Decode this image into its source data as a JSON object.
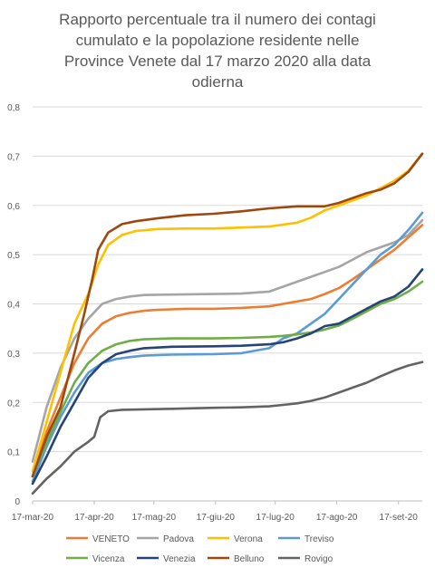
{
  "chart_data": {
    "type": "line",
    "title": "Rapporto percentuale tra il numero dei contagi cumulato e la popolazione residente nelle Province Venete dal 17 marzo 2020 alla data odierna",
    "title_lines": [
      "Rapporto percentuale tra il numero dei contagi",
      "cumulato e la popolazione residente nelle",
      "Province Venete dal 17 marzo 2020 alla data",
      "odierna"
    ],
    "x_tick_labels": [
      "17-mar-20",
      "17-apr-20",
      "17-mag-20",
      "17-giu-20",
      "17-lug-20",
      "17-ago-20",
      "17-set-20"
    ],
    "x_tick_days": [
      0,
      31,
      61,
      92,
      122,
      153,
      184
    ],
    "xlim_days": [
      0,
      196
    ],
    "ylim": [
      0,
      0.8
    ],
    "y_tick_values": [
      0,
      0.1,
      0.2,
      0.3,
      0.4,
      0.5,
      0.6,
      0.7,
      0.8
    ],
    "y_tick_labels": [
      "0",
      "0,1",
      "0,2",
      "0,3",
      "0,4",
      "0,5",
      "0,6",
      "0,7",
      "0,8"
    ],
    "grid": "horizontal",
    "legend_position": "bottom",
    "series": [
      {
        "name": "VENETO",
        "color": "#ed7d31",
        "points": [
          [
            0,
            0.05
          ],
          [
            7,
            0.14
          ],
          [
            14,
            0.21
          ],
          [
            21,
            0.28
          ],
          [
            28,
            0.33
          ],
          [
            35,
            0.36
          ],
          [
            42,
            0.375
          ],
          [
            49,
            0.382
          ],
          [
            56,
            0.386
          ],
          [
            63,
            0.388
          ],
          [
            77,
            0.39
          ],
          [
            91,
            0.39
          ],
          [
            105,
            0.392
          ],
          [
            119,
            0.395
          ],
          [
            126,
            0.4
          ],
          [
            133,
            0.405
          ],
          [
            140,
            0.41
          ],
          [
            147,
            0.42
          ],
          [
            154,
            0.432
          ],
          [
            161,
            0.45
          ],
          [
            168,
            0.47
          ],
          [
            175,
            0.49
          ],
          [
            182,
            0.51
          ],
          [
            189,
            0.535
          ],
          [
            196,
            0.56
          ]
        ]
      },
      {
        "name": "Padova",
        "color": "#a5a5a5",
        "points": [
          [
            0,
            0.08
          ],
          [
            7,
            0.19
          ],
          [
            14,
            0.27
          ],
          [
            21,
            0.33
          ],
          [
            28,
            0.37
          ],
          [
            35,
            0.4
          ],
          [
            42,
            0.41
          ],
          [
            49,
            0.415
          ],
          [
            56,
            0.418
          ],
          [
            70,
            0.419
          ],
          [
            91,
            0.42
          ],
          [
            105,
            0.421
          ],
          [
            119,
            0.425
          ],
          [
            126,
            0.435
          ],
          [
            133,
            0.445
          ],
          [
            140,
            0.455
          ],
          [
            147,
            0.465
          ],
          [
            154,
            0.475
          ],
          [
            161,
            0.49
          ],
          [
            168,
            0.505
          ],
          [
            175,
            0.515
          ],
          [
            182,
            0.525
          ],
          [
            189,
            0.54
          ],
          [
            196,
            0.57
          ]
        ]
      },
      {
        "name": "Verona",
        "color": "#ffc000",
        "points": [
          [
            0,
            0.06
          ],
          [
            7,
            0.16
          ],
          [
            14,
            0.26
          ],
          [
            21,
            0.36
          ],
          [
            28,
            0.42
          ],
          [
            33,
            0.48
          ],
          [
            38,
            0.52
          ],
          [
            45,
            0.54
          ],
          [
            52,
            0.548
          ],
          [
            63,
            0.552
          ],
          [
            77,
            0.553
          ],
          [
            91,
            0.553
          ],
          [
            105,
            0.555
          ],
          [
            119,
            0.557
          ],
          [
            133,
            0.565
          ],
          [
            140,
            0.575
          ],
          [
            147,
            0.59
          ],
          [
            154,
            0.6
          ],
          [
            161,
            0.61
          ],
          [
            168,
            0.62
          ],
          [
            175,
            0.635
          ],
          [
            182,
            0.65
          ],
          [
            189,
            0.67
          ],
          [
            196,
            0.705
          ]
        ]
      },
      {
        "name": "Treviso",
        "color": "#5b9bd5",
        "points": [
          [
            0,
            0.04
          ],
          [
            7,
            0.11
          ],
          [
            14,
            0.17
          ],
          [
            21,
            0.22
          ],
          [
            28,
            0.26
          ],
          [
            35,
            0.28
          ],
          [
            42,
            0.288
          ],
          [
            49,
            0.292
          ],
          [
            56,
            0.295
          ],
          [
            70,
            0.297
          ],
          [
            91,
            0.298
          ],
          [
            105,
            0.3
          ],
          [
            119,
            0.31
          ],
          [
            126,
            0.33
          ],
          [
            133,
            0.34
          ],
          [
            140,
            0.36
          ],
          [
            147,
            0.38
          ],
          [
            154,
            0.41
          ],
          [
            161,
            0.44
          ],
          [
            168,
            0.47
          ],
          [
            175,
            0.5
          ],
          [
            182,
            0.52
          ],
          [
            189,
            0.55
          ],
          [
            196,
            0.585
          ]
        ]
      },
      {
        "name": "Vicenza",
        "color": "#70ad47",
        "points": [
          [
            0,
            0.05
          ],
          [
            7,
            0.12
          ],
          [
            14,
            0.18
          ],
          [
            21,
            0.24
          ],
          [
            28,
            0.28
          ],
          [
            35,
            0.305
          ],
          [
            42,
            0.318
          ],
          [
            49,
            0.325
          ],
          [
            56,
            0.328
          ],
          [
            70,
            0.33
          ],
          [
            91,
            0.33
          ],
          [
            105,
            0.331
          ],
          [
            119,
            0.333
          ],
          [
            126,
            0.335
          ],
          [
            133,
            0.338
          ],
          [
            140,
            0.342
          ],
          [
            147,
            0.348
          ],
          [
            154,
            0.356
          ],
          [
            161,
            0.37
          ],
          [
            168,
            0.385
          ],
          [
            175,
            0.4
          ],
          [
            182,
            0.41
          ],
          [
            189,
            0.425
          ],
          [
            196,
            0.445
          ]
        ]
      },
      {
        "name": "Venezia",
        "color": "#264478",
        "points": [
          [
            0,
            0.035
          ],
          [
            7,
            0.09
          ],
          [
            14,
            0.15
          ],
          [
            21,
            0.2
          ],
          [
            28,
            0.25
          ],
          [
            35,
            0.28
          ],
          [
            42,
            0.298
          ],
          [
            49,
            0.305
          ],
          [
            56,
            0.31
          ],
          [
            70,
            0.313
          ],
          [
            91,
            0.314
          ],
          [
            105,
            0.315
          ],
          [
            119,
            0.318
          ],
          [
            126,
            0.322
          ],
          [
            133,
            0.33
          ],
          [
            140,
            0.34
          ],
          [
            147,
            0.355
          ],
          [
            154,
            0.36
          ],
          [
            161,
            0.375
          ],
          [
            168,
            0.39
          ],
          [
            175,
            0.405
          ],
          [
            182,
            0.415
          ],
          [
            189,
            0.435
          ],
          [
            196,
            0.47
          ]
        ]
      },
      {
        "name": "Belluno",
        "color": "#9e480e",
        "points": [
          [
            0,
            0.05
          ],
          [
            7,
            0.13
          ],
          [
            14,
            0.19
          ],
          [
            21,
            0.3
          ],
          [
            26,
            0.38
          ],
          [
            30,
            0.45
          ],
          [
            33,
            0.51
          ],
          [
            38,
            0.545
          ],
          [
            45,
            0.562
          ],
          [
            52,
            0.568
          ],
          [
            63,
            0.574
          ],
          [
            77,
            0.58
          ],
          [
            91,
            0.583
          ],
          [
            105,
            0.588
          ],
          [
            119,
            0.594
          ],
          [
            133,
            0.598
          ],
          [
            140,
            0.598
          ],
          [
            147,
            0.598
          ],
          [
            154,
            0.605
          ],
          [
            161,
            0.615
          ],
          [
            168,
            0.625
          ],
          [
            175,
            0.632
          ],
          [
            182,
            0.645
          ],
          [
            189,
            0.668
          ],
          [
            196,
            0.705
          ]
        ]
      },
      {
        "name": "Rovigo",
        "color": "#636363",
        "points": [
          [
            0,
            0.015
          ],
          [
            7,
            0.045
          ],
          [
            14,
            0.07
          ],
          [
            21,
            0.1
          ],
          [
            28,
            0.12
          ],
          [
            31,
            0.13
          ],
          [
            34,
            0.17
          ],
          [
            38,
            0.182
          ],
          [
            45,
            0.185
          ],
          [
            56,
            0.186
          ],
          [
            70,
            0.187
          ],
          [
            91,
            0.189
          ],
          [
            105,
            0.19
          ],
          [
            119,
            0.192
          ],
          [
            126,
            0.195
          ],
          [
            133,
            0.198
          ],
          [
            140,
            0.203
          ],
          [
            147,
            0.21
          ],
          [
            154,
            0.22
          ],
          [
            161,
            0.23
          ],
          [
            168,
            0.24
          ],
          [
            175,
            0.253
          ],
          [
            182,
            0.265
          ],
          [
            189,
            0.275
          ],
          [
            196,
            0.282
          ]
        ]
      }
    ]
  }
}
